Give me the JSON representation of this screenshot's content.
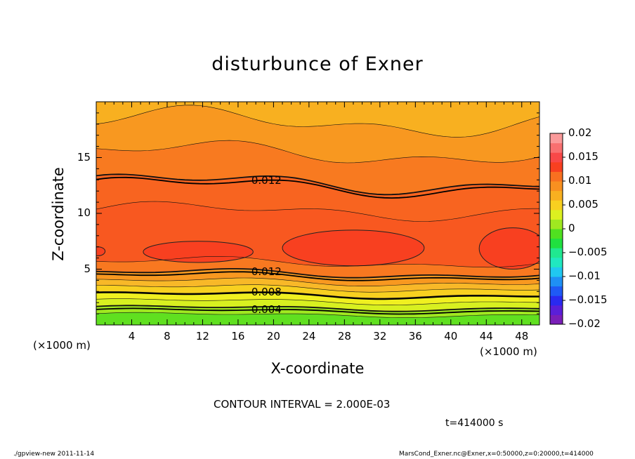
{
  "chart_data": {
    "type": "contour",
    "title": "disturbunce of Exner",
    "xlabel": "X-coordinate",
    "ylabel": "Z-coordinate",
    "x_unit_left": "(×1000 m)",
    "x_unit_right": "(×1000 m)",
    "xlim": [
      0,
      50
    ],
    "ylim": [
      0,
      20
    ],
    "x_ticks": [
      4,
      8,
      12,
      16,
      20,
      24,
      28,
      32,
      36,
      40,
      44,
      48
    ],
    "y_ticks": [
      5,
      10,
      15
    ],
    "x_tick_labels": [
      "4",
      "8",
      "12",
      "16",
      "20",
      "24",
      "28",
      "32",
      "36",
      "40",
      "44",
      "48"
    ],
    "y_tick_labels": [
      "5",
      "10",
      "15"
    ],
    "contour_labels": [
      {
        "text": "0.012",
        "x": 17.5,
        "z": 12.4
      },
      {
        "text": "0.012",
        "x": 17.5,
        "z": 4.35
      },
      {
        "text": "0.008",
        "x": 17.5,
        "z": 2.65
      },
      {
        "text": "0.004",
        "x": 17.5,
        "z": 1.25
      }
    ],
    "contour_interval_text": "CONTOUR INTERVAL = 2.000E-03",
    "time_text": "t=414000 s",
    "colorbar": {
      "min": -0.02,
      "max": 0.02,
      "labels": [
        "0.02",
        "0.015",
        "0.01",
        "0.005",
        "0",
        "−0.005",
        "−0.01",
        "−0.015",
        "−0.02"
      ],
      "colors": [
        "#7a1fb8",
        "#5a1fd8",
        "#2a2af0",
        "#1f5af5",
        "#1f90f5",
        "#20c8f0",
        "#20e8c0",
        "#20e890",
        "#20e040",
        "#50e020",
        "#a0e820",
        "#dcf020",
        "#f8d020",
        "#f8b020",
        "#f89020",
        "#f87020",
        "#f84020",
        "#f84848",
        "#f87070",
        "#fa9a9a"
      ]
    },
    "bands": [
      {
        "color": "#60e020",
        "bottom": 0.0
      },
      {
        "color": "#a0e820",
        "bottom": 0.9
      },
      {
        "color": "#d8f020",
        "bottom": 1.5
      },
      {
        "color": "#f0f020",
        "bottom": 2.1
      },
      {
        "color": "#f8d020",
        "bottom": 2.7
      },
      {
        "color": "#f8b828",
        "bottom": 3.3
      },
      {
        "color": "#f89820",
        "bottom": 3.85
      },
      {
        "color": "#f87820",
        "bottom": 4.6
      },
      {
        "color": "#f85820",
        "bottom": 5.6
      },
      {
        "color": "#f86420",
        "bottom": 10.2
      },
      {
        "color": "#f87a20",
        "bottom": 12.7
      },
      {
        "color": "#f89820",
        "bottom": 15.4
      },
      {
        "color": "#f8b020",
        "bottom": 18.2
      }
    ],
    "cores": [
      {
        "color": "#f84020",
        "cx": 11.5,
        "cz": 6.55,
        "rx": 6.2,
        "rz": 0.95
      },
      {
        "color": "#f84020",
        "cx": 29.0,
        "cz": 6.9,
        "rx": 8.0,
        "rz": 1.6
      },
      {
        "color": "#f84020",
        "cx": 47.0,
        "cz": 6.85,
        "rx": 3.8,
        "rz": 1.85
      },
      {
        "color": "#f84020",
        "cx": 0.2,
        "cz": 6.6,
        "rx": 0.8,
        "rz": 0.4
      }
    ]
  },
  "footer": {
    "left": "./gpview-new   2011-11-14",
    "right": "MarsCond_Exner.nc@Exner,x=0:50000,z=0:20000,t=414000"
  }
}
